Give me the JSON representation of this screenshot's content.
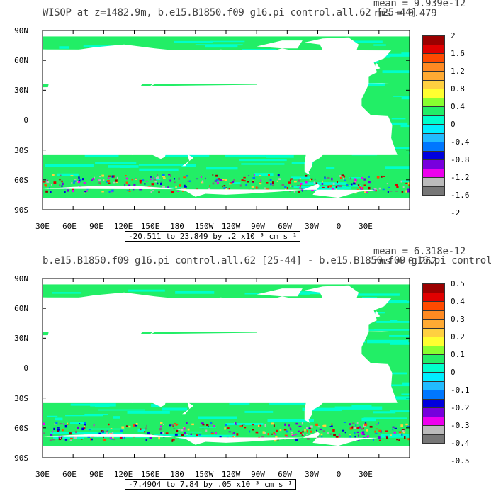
{
  "panels": [
    {
      "title": "WISOP at z=1482.9m, b.e15.B1850.f09_g16.pi_control.all.62 [25-44]",
      "mean": "mean = 9.939e-12",
      "rms": "rms = 0.479",
      "range_text": "-20.511 to 23.849 by .2 x10⁻³ cm s⁻¹",
      "colorbar_labels": [
        "2",
        "1.6",
        "1.2",
        "0.8",
        "0.4",
        "0",
        "-0.4",
        "-0.8",
        "-1.2",
        "-1.6",
        "-2"
      ]
    },
    {
      "title": "b.e15.B1850.f09_g16.pi_control.all.62 [25-44] - b.e15.B1850.f09_g16.pi_control",
      "mean": "mean = 6.318e-12",
      "rms": "rms = 0.262",
      "range_text": "-7.4904 to 7.84 by .05 x10⁻³ cm s⁻¹",
      "colorbar_labels": [
        "0.5",
        "0.4",
        "0.3",
        "0.2",
        "0.1",
        "0",
        "-0.1",
        "-0.2",
        "-0.3",
        "-0.4",
        "-0.5"
      ]
    }
  ],
  "y_ticks": [
    "90N",
    "60N",
    "30N",
    "0",
    "30S",
    "60S",
    "90S"
  ],
  "x_ticks": [
    "30E",
    "60E",
    "90E",
    "120E",
    "150E",
    "180",
    "150W",
    "120W",
    "90W",
    "60W",
    "30W",
    "0",
    "30E"
  ],
  "colorbar_colors": [
    "#9b0000",
    "#e00000",
    "#ff4a00",
    "#ff8a22",
    "#ffaa33",
    "#ffd040",
    "#ffff30",
    "#88ff30",
    "#22ee66",
    "#00ffcc",
    "#00eeff",
    "#22bbff",
    "#0077ff",
    "#0000dd",
    "#7700dd",
    "#ee00ee",
    "#bbbbbb",
    "#777777"
  ],
  "chart_data": [
    {
      "type": "heatmap",
      "title": "WISOP at z=1482.9m, b.e15.B1850.f09_g16.pi_control.all.62 [25-44]",
      "xlabel": "",
      "ylabel": "",
      "x_range": [
        "30E",
        "30E"
      ],
      "y_range": [
        "90S",
        "90N"
      ],
      "color_scale_ticks": [
        2,
        1.6,
        1.2,
        0.8,
        0.4,
        0,
        -0.4,
        -0.8,
        -1.2,
        -1.6,
        -2
      ],
      "field_min": -20.511,
      "field_max": 23.849,
      "contour_interval": 0.2,
      "units": "x10^-3 cm s^-1",
      "mean": 9.939e-12,
      "rms": 0.479
    },
    {
      "type": "heatmap",
      "title": "b.e15.B1850.f09_g16.pi_control.all.62 [25-44] - b.e15.B1850.f09_g16.pi_control",
      "xlabel": "",
      "ylabel": "",
      "x_range": [
        "30E",
        "30E"
      ],
      "y_range": [
        "90S",
        "90N"
      ],
      "color_scale_ticks": [
        0.5,
        0.4,
        0.3,
        0.2,
        0.1,
        0,
        -0.1,
        -0.2,
        -0.3,
        -0.4,
        -0.5
      ],
      "field_min": -7.4904,
      "field_max": 7.84,
      "contour_interval": 0.05,
      "units": "x10^-3 cm s^-1",
      "mean": 6.318e-12,
      "rms": 0.262
    }
  ]
}
